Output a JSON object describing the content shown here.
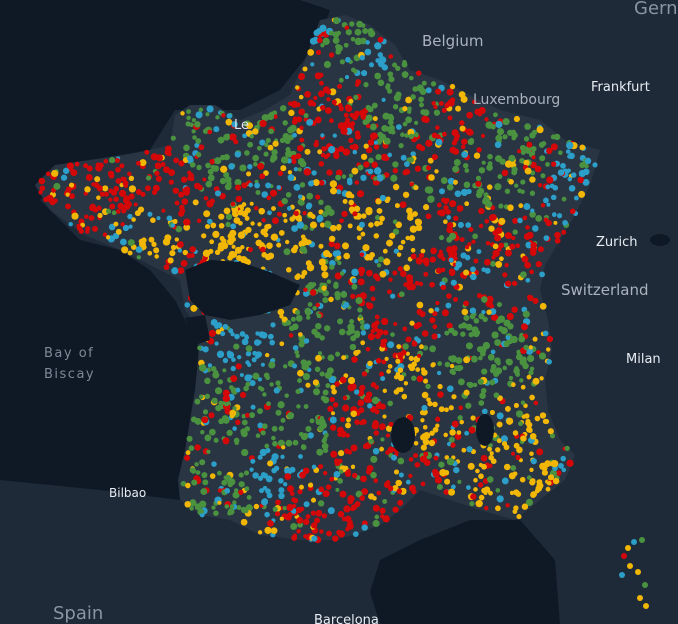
{
  "colors": {
    "background": "#0f1926",
    "land": "#1e2a38",
    "water": "#0f1926",
    "category_colors": [
      "#d40808",
      "#f2b705",
      "#4a9240",
      "#2c9fc9"
    ]
  },
  "labels": {
    "germany": "Gern",
    "belgium": "Belgium",
    "luxembourg": "Luxembourg",
    "frankfurt": "Frankfurt",
    "zurich": "Zurich",
    "switzerland": "Switzerland",
    "milan": "Milan",
    "bay_of_biscay_line1": "Bay of",
    "bay_of_biscay_line2": "Biscay",
    "bilbao": "Bilbao",
    "spain": "Spain",
    "barcelona": "Barcelona",
    "le_havre_partial": "Le"
  }
}
